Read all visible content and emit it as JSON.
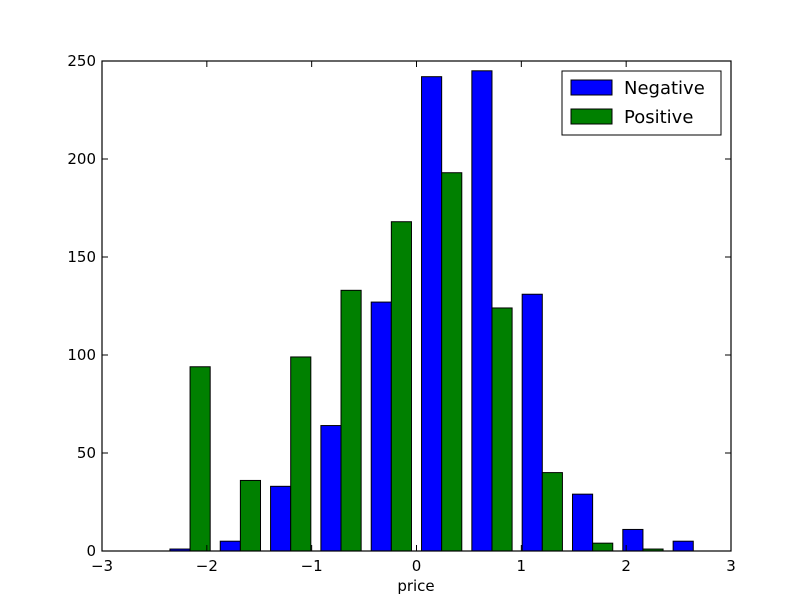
{
  "chart_data": {
    "type": "bar",
    "title": "",
    "xlabel": "price",
    "ylabel": "",
    "xlim": [
      -3,
      3
    ],
    "ylim": [
      0,
      250
    ],
    "xticks": [
      -3,
      -2,
      -1,
      0,
      1,
      2,
      3
    ],
    "xtick_labels": [
      "−3",
      "−2",
      "−1",
      "0",
      "1",
      "2",
      "3"
    ],
    "yticks": [
      0,
      50,
      100,
      150,
      200,
      250
    ],
    "ytick_labels": [
      "0",
      "50",
      "100",
      "150",
      "200",
      "250"
    ],
    "grid": false,
    "legend_position": "top-right",
    "bins": [
      [
        -2.4,
        -1.92
      ],
      [
        -1.92,
        -1.44
      ],
      [
        -1.44,
        -0.96
      ],
      [
        -0.96,
        -0.48
      ],
      [
        -0.48,
        0.0
      ],
      [
        0.0,
        0.48
      ],
      [
        0.48,
        0.96
      ],
      [
        0.96,
        1.44
      ],
      [
        1.44,
        1.92
      ],
      [
        1.92,
        2.4
      ],
      [
        2.4,
        2.88
      ]
    ],
    "series": [
      {
        "name": "Negative",
        "color": "#0000ff",
        "values": [
          1,
          5,
          33,
          64,
          127,
          242,
          245,
          131,
          29,
          11,
          5
        ]
      },
      {
        "name": "Positive",
        "color": "#008000",
        "values": [
          94,
          36,
          99,
          133,
          168,
          193,
          124,
          40,
          4,
          1,
          0
        ]
      }
    ]
  }
}
